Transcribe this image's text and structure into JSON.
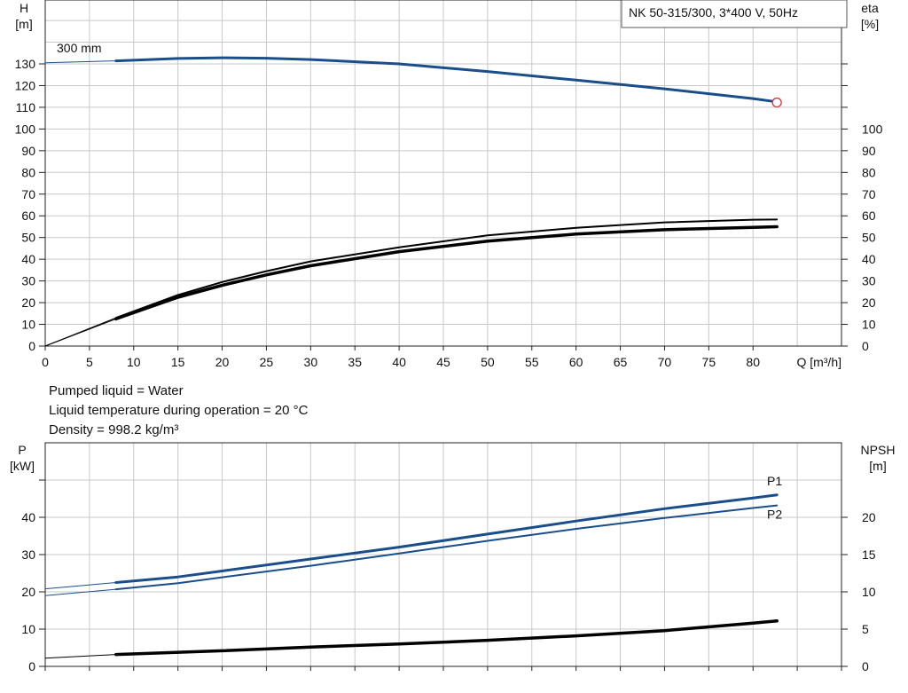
{
  "product": "NK 50-315/300, 3*400 V, 50Hz",
  "info_lines": [
    "Pumped liquid = Water",
    "Liquid temperature during operation = 20 °C",
    "Density = 998.2 kg/m³"
  ],
  "colors": {
    "blue": "#1a4e8a",
    "black": "#000000",
    "grid": "#c8c8c8",
    "marker": "#e03030"
  },
  "chart_data": [
    {
      "type": "line",
      "title": "",
      "xlabel": "Q [m³/h]",
      "xlim": [
        0,
        90
      ],
      "x_ticks": [
        0,
        5,
        10,
        15,
        20,
        25,
        30,
        35,
        40,
        45,
        50,
        55,
        60,
        65,
        70,
        75,
        80
      ],
      "ylabel_left": "H\n[m]",
      "ylim_left": [
        0,
        130
      ],
      "y_ticks_left": [
        0,
        10,
        20,
        30,
        40,
        50,
        60,
        70,
        80,
        90,
        100,
        110,
        120,
        130
      ],
      "ylabel_right": "eta\n[%]",
      "y_ticks_right": [
        0,
        10,
        20,
        30,
        40,
        50,
        60,
        70,
        80,
        90,
        100
      ],
      "grid": true,
      "annotations": [
        {
          "text": "300 mm"
        }
      ],
      "series": [
        {
          "axis": "left",
          "color": "blue",
          "width": 3,
          "extension": {
            "x": [
              0,
              8
            ],
            "y": [
              130.5,
              131.4
            ]
          },
          "x": [
            8,
            15,
            20,
            25,
            30,
            40,
            50,
            60,
            70,
            80,
            82.7
          ],
          "y": [
            131.4,
            132.5,
            132.8,
            132.6,
            132.0,
            130.0,
            126.5,
            122.5,
            118.5,
            114.0,
            112.5
          ]
        },
        {
          "axis": "left",
          "color": "black",
          "width": 2,
          "extension": {
            "x": [
              0,
              8
            ],
            "y": [
              0,
              13
            ]
          },
          "x": [
            8,
            15,
            20,
            25,
            30,
            40,
            50,
            60,
            70,
            80,
            82.7
          ],
          "y": [
            13,
            23.5,
            29.5,
            34.5,
            39.0,
            45.5,
            51.0,
            54.5,
            57.0,
            58.2,
            58.3
          ]
        },
        {
          "axis": "left",
          "color": "black",
          "width": 3.5,
          "extension": {
            "x": [
              0,
              8
            ],
            "y": [
              0,
              12.5
            ]
          },
          "x": [
            8,
            15,
            20,
            25,
            30,
            40,
            50,
            60,
            70,
            80,
            82.7
          ],
          "y": [
            12.5,
            22.5,
            28.0,
            32.8,
            37.0,
            43.5,
            48.3,
            51.6,
            53.6,
            54.7,
            55.0
          ]
        }
      ],
      "duty_point": {
        "x": 82.7,
        "y": 112.2
      }
    },
    {
      "type": "line",
      "title": "",
      "xlabel": "",
      "xlim": [
        0,
        90
      ],
      "ylabel_left": "P\n[kW]",
      "ylim_left": [
        0,
        50
      ],
      "y_ticks_left": [
        0,
        10,
        20,
        30,
        40
      ],
      "ylabel_right": "NPSH\n[m]",
      "ylim_right": [
        0,
        25
      ],
      "y_ticks_right": [
        0,
        5,
        10,
        15,
        20
      ],
      "grid": true,
      "series": [
        {
          "name": "P1",
          "axis": "left",
          "color": "blue",
          "width": 3,
          "extension": {
            "x": [
              0,
              8
            ],
            "y": [
              20.8,
              22.5
            ]
          },
          "x": [
            8,
            15,
            20,
            30,
            40,
            50,
            60,
            70,
            80,
            82.7
          ],
          "y": [
            22.5,
            24.0,
            25.6,
            28.8,
            32.0,
            35.5,
            39.0,
            42.3,
            45.2,
            46.0
          ]
        },
        {
          "name": "P2",
          "axis": "left",
          "color": "blue",
          "width": 2,
          "extension": {
            "x": [
              0,
              8
            ],
            "y": [
              19.0,
              20.7
            ]
          },
          "x": [
            8,
            15,
            20,
            30,
            40,
            50,
            60,
            70,
            80,
            82.7
          ],
          "y": [
            20.7,
            22.3,
            23.9,
            27.0,
            30.3,
            33.7,
            36.9,
            39.8,
            42.5,
            43.2
          ]
        },
        {
          "axis": "right",
          "color": "black",
          "width": 3.5,
          "extension": {
            "x": [
              0,
              8
            ],
            "y": [
              1.1,
              1.6
            ]
          },
          "x": [
            8,
            20,
            30,
            40,
            50,
            60,
            70,
            80,
            82.7
          ],
          "y": [
            1.6,
            2.1,
            2.6,
            3.0,
            3.5,
            4.1,
            4.8,
            5.8,
            6.1
          ]
        }
      ]
    }
  ]
}
